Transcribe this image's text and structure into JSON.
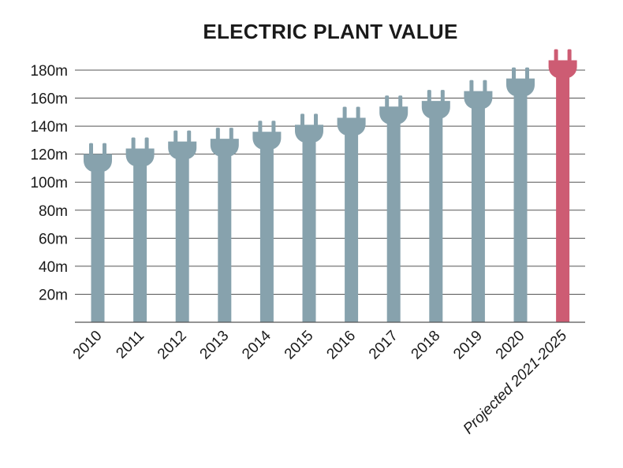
{
  "chart_data": {
    "type": "bar",
    "title": "ELECTRIC PLANT VALUE",
    "xlabel": "",
    "ylabel": "",
    "categories": [
      "2010",
      "2011",
      "2012",
      "2013",
      "2014",
      "2015",
      "2016",
      "2017",
      "2018",
      "2019",
      "2020",
      "Projected 2021-2025"
    ],
    "values": [
      120,
      124,
      129,
      131,
      136,
      141,
      146,
      154,
      158,
      165,
      174,
      187
    ],
    "ylim": [
      0,
      180
    ],
    "yticks": [
      20,
      40,
      60,
      80,
      100,
      120,
      140,
      160,
      180
    ],
    "ytick_labels": [
      "20m",
      "40m",
      "60m",
      "80m",
      "100m",
      "120m",
      "140m",
      "160m",
      "180m"
    ],
    "grid": true,
    "bar_shape": "electric-plug",
    "colors": {
      "historical": "#87a2ad",
      "projected": "#cd5c73",
      "grid": "#555555"
    }
  }
}
